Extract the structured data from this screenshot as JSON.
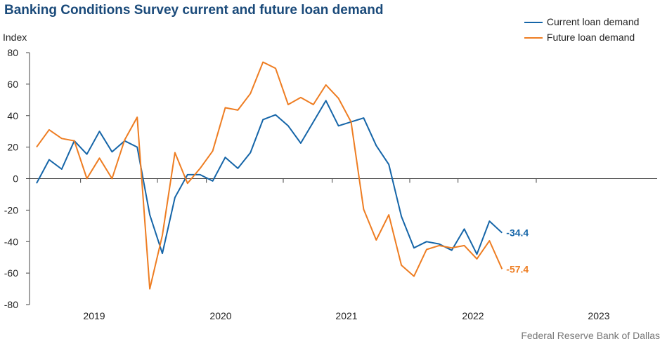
{
  "chart_data": {
    "type": "line",
    "title": "Banking Conditions Survey current and future loan demand",
    "ylabel": "Index",
    "ylim": [
      -80,
      80
    ],
    "y_ticks": [
      80,
      60,
      40,
      20,
      0,
      -20,
      -40,
      -60,
      -80
    ],
    "x_labels": [
      "2019",
      "2020",
      "2021",
      "2022",
      "2023"
    ],
    "grid": false,
    "legend": "top-right",
    "source": "Federal Reserve Bank of Dallas",
    "series": [
      {
        "name": "Current loan demand",
        "color": "#1565a8",
        "end_label": "-34.4",
        "values": [
          -3,
          12,
          6,
          24,
          15.5,
          30,
          17,
          24,
          20,
          -23,
          -47.5,
          -12,
          2.5,
          2.5,
          -1.5,
          13.5,
          6.5,
          16.5,
          37.5,
          40.5,
          33.5,
          22.5,
          36,
          49.5,
          33.5,
          36,
          38.5,
          21,
          9,
          -24,
          -44,
          -40,
          -41.5,
          -45.5,
          -32,
          -48,
          -27,
          -34.4
        ]
      },
      {
        "name": "Future loan demand",
        "color": "#ee7d22",
        "end_label": "-57.4",
        "values": [
          20,
          31,
          25.5,
          24,
          0,
          13,
          0,
          24.5,
          39,
          -70,
          -36,
          16.5,
          -3,
          6.5,
          17.5,
          45,
          43.5,
          54,
          74,
          70,
          47,
          51.5,
          47,
          59.5,
          51,
          36,
          -19.5,
          -39,
          -23,
          -55,
          -62,
          -45,
          -42.5,
          -44,
          -42.5,
          -51,
          -39.5,
          -57.4
        ]
      }
    ]
  }
}
